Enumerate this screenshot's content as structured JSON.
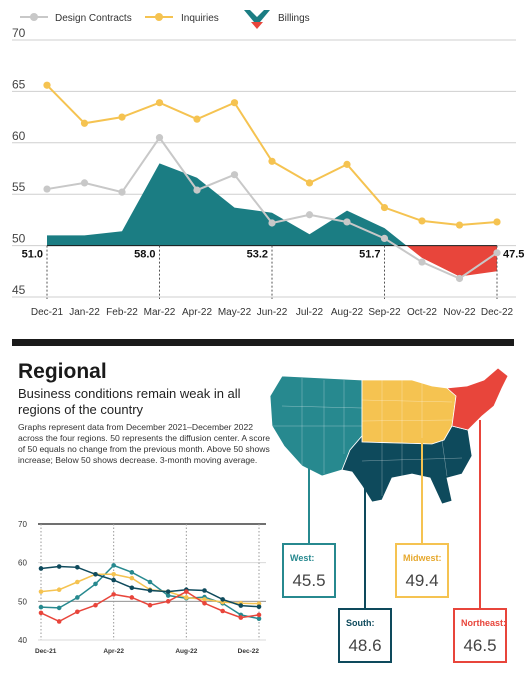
{
  "colors": {
    "design_contracts": "#c8c8c8",
    "inquiries": "#f5c351",
    "billings_above": "#1b7d83",
    "billings_below": "#e8453b",
    "west": "#27898f",
    "midwest": "#f5c351",
    "south": "#0e4a5c",
    "northeast": "#e8453b"
  },
  "chart_data": [
    {
      "type": "line",
      "categories": [
        "Dec-21",
        "Jan-22",
        "Feb-22",
        "Mar-22",
        "Apr-22",
        "May-22",
        "Jun-22",
        "Jul-22",
        "Aug-22",
        "Sep-22",
        "Oct-22",
        "Nov-22",
        "Dec-22"
      ],
      "series": [
        {
          "name": "Design Contracts",
          "style": "line",
          "values": [
            55.5,
            56.1,
            55.2,
            60.5,
            55.4,
            56.9,
            52.2,
            53.0,
            52.3,
            50.7,
            48.4,
            46.8,
            49.3
          ]
        },
        {
          "name": "Inquiries",
          "style": "line",
          "values": [
            65.6,
            61.9,
            62.5,
            63.9,
            62.3,
            63.9,
            58.2,
            56.1,
            57.9,
            53.7,
            52.4,
            52.0,
            52.3
          ]
        },
        {
          "name": "Billings",
          "style": "area",
          "baseline": 50,
          "values": [
            51.0,
            51.0,
            51.4,
            58.0,
            56.6,
            53.7,
            53.2,
            51.1,
            53.4,
            51.7,
            48.8,
            47.0,
            47.5
          ]
        }
      ],
      "y_ticks": [
        45,
        50,
        55,
        60,
        65,
        70
      ],
      "ylim": [
        45,
        70
      ],
      "data_labels": [
        {
          "category": "Dec-21",
          "text": "51.0"
        },
        {
          "category": "Mar-22",
          "text": "58.0"
        },
        {
          "category": "Jun-22",
          "text": "53.2"
        },
        {
          "category": "Sep-22",
          "text": "51.7"
        },
        {
          "category": "Dec-22",
          "text": "47.5"
        }
      ],
      "legend": "top-left"
    },
    {
      "type": "line",
      "x_tick_labels": [
        {
          "index": 0,
          "text": "Dec-21"
        },
        {
          "index": 4,
          "text": "Apr-22"
        },
        {
          "index": 8,
          "text": "Aug-22"
        },
        {
          "index": 12,
          "text": "Dec-22"
        }
      ],
      "series": [
        {
          "name": "West",
          "color_key": "west",
          "values": [
            48.5,
            48.3,
            51.0,
            54.5,
            59.3,
            57.5,
            55.0,
            51.5,
            50.8,
            51.1,
            49.5,
            46.5,
            45.5
          ]
        },
        {
          "name": "Midwest",
          "color_key": "midwest",
          "values": [
            52.5,
            53.0,
            55.0,
            57.0,
            57.0,
            56.0,
            53.0,
            52.5,
            51.0,
            50.5,
            49.8,
            49.5,
            49.4
          ]
        },
        {
          "name": "South",
          "color_key": "south",
          "values": [
            58.5,
            59.0,
            58.8,
            57.0,
            55.5,
            53.5,
            52.8,
            52.5,
            53.0,
            52.8,
            50.5,
            48.9,
            48.6
          ]
        },
        {
          "name": "Northeast",
          "color_key": "northeast",
          "values": [
            47.0,
            44.8,
            47.3,
            49.0,
            51.8,
            51.0,
            49.0,
            50.0,
            52.5,
            49.5,
            47.5,
            45.8,
            46.5
          ]
        }
      ],
      "y_ticks": [
        40,
        50,
        60,
        70
      ],
      "ylim": [
        40,
        70
      ]
    }
  ],
  "legend": {
    "design_contracts": "Design Contracts",
    "inquiries": "Inquiries",
    "billings": "Billings"
  },
  "regional": {
    "title": "Regional",
    "subtitle": "Business conditions remain weak in all regions of the country",
    "note": "Graphs represent data from December 2021–December 2022 across the four regions. 50 represents the diffusion center. A score of 50 equals no change from the previous month. Above 50 shows increase; Below 50 shows decrease. 3-month moving average."
  },
  "regions": {
    "west": {
      "label": "West:",
      "value": "45.5"
    },
    "midwest": {
      "label": "Midwest:",
      "value": "49.4"
    },
    "south": {
      "label": "South:",
      "value": "48.6"
    },
    "northeast": {
      "label": "Northeast:",
      "value": "46.5"
    }
  }
}
